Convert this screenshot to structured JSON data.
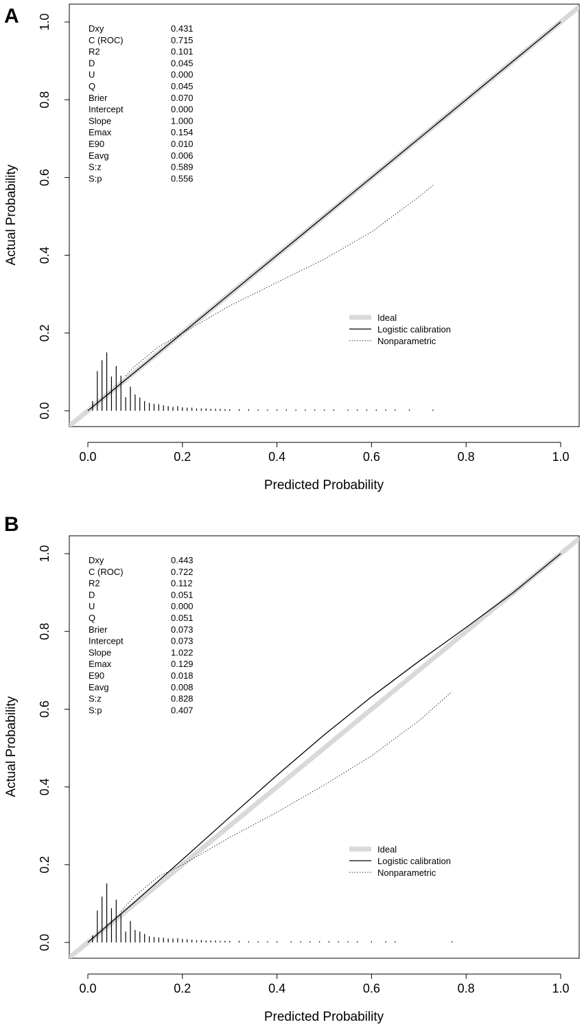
{
  "chart_data": [
    {
      "type": "line",
      "panel_label": "A",
      "xlabel": "Predicted Probability",
      "ylabel": "Actual Probability",
      "xlim": [
        -0.035,
        1.04
      ],
      "ylim": [
        -0.04,
        1.05
      ],
      "x_ticks": [
        "0.0",
        "0.2",
        "0.4",
        "0.6",
        "0.8",
        "1.0"
      ],
      "y_ticks": [
        "0.0",
        "0.2",
        "0.4",
        "0.6",
        "0.8",
        "1.0"
      ],
      "stats": [
        {
          "name": "Dxy",
          "value": "0.431"
        },
        {
          "name": "C (ROC)",
          "value": "0.715"
        },
        {
          "name": "R2",
          "value": "0.101"
        },
        {
          "name": "D",
          "value": "0.045"
        },
        {
          "name": "U",
          "value": "0.000"
        },
        {
          "name": "Q",
          "value": "0.045"
        },
        {
          "name": "Brier",
          "value": "0.070"
        },
        {
          "name": "Intercept",
          "value": "0.000"
        },
        {
          "name": "Slope",
          "value": "1.000"
        },
        {
          "name": "Emax",
          "value": "0.154"
        },
        {
          "name": "E90",
          "value": "0.010"
        },
        {
          "name": "Eavg",
          "value": "0.006"
        },
        {
          "name": "S:z",
          "value": "0.589"
        },
        {
          "name": "S:p",
          "value": "0.556"
        }
      ],
      "legend": {
        "position": "bottom-right",
        "entries": [
          "Ideal",
          "Logistic calibration",
          "Nonparametric"
        ]
      },
      "series": [
        {
          "name": "Ideal",
          "style": "thick-gray",
          "x": [
            -0.04,
            1.04
          ],
          "y": [
            -0.04,
            1.04
          ]
        },
        {
          "name": "Logistic calibration",
          "style": "solid",
          "x": [
            0.0,
            0.2,
            0.4,
            0.6,
            0.8,
            1.0
          ],
          "y": [
            0.0,
            0.2,
            0.4,
            0.6,
            0.8,
            1.0
          ]
        },
        {
          "name": "Nonparametric",
          "style": "dotted",
          "x": [
            0.08,
            0.1,
            0.15,
            0.2,
            0.25,
            0.3,
            0.4,
            0.5,
            0.6,
            0.7,
            0.73
          ],
          "y": [
            0.09,
            0.115,
            0.165,
            0.2,
            0.235,
            0.27,
            0.33,
            0.39,
            0.46,
            0.55,
            0.58
          ]
        }
      ],
      "histogram_spikes": {
        "x": [
          0.01,
          0.02,
          0.03,
          0.04,
          0.05,
          0.06,
          0.07,
          0.08,
          0.09,
          0.1,
          0.11,
          0.12,
          0.13,
          0.14,
          0.15,
          0.16,
          0.17,
          0.18,
          0.19,
          0.2,
          0.21,
          0.22,
          0.23,
          0.24,
          0.25,
          0.26,
          0.27,
          0.28,
          0.29,
          0.3,
          0.32,
          0.34,
          0.36,
          0.38,
          0.4,
          0.42,
          0.44,
          0.46,
          0.48,
          0.5,
          0.52,
          0.55,
          0.57,
          0.59,
          0.61,
          0.63,
          0.65,
          0.68,
          0.73
        ],
        "h": [
          0.025,
          0.102,
          0.13,
          0.15,
          0.088,
          0.115,
          0.09,
          0.035,
          0.062,
          0.042,
          0.034,
          0.025,
          0.02,
          0.018,
          0.017,
          0.014,
          0.012,
          0.01,
          0.012,
          0.009,
          0.008,
          0.008,
          0.006,
          0.006,
          0.006,
          0.005,
          0.005,
          0.005,
          0.004,
          0.004,
          0.004,
          0.004,
          0.003,
          0.003,
          0.003,
          0.003,
          0.003,
          0.003,
          0.003,
          0.003,
          0.003,
          0.003,
          0.003,
          0.003,
          0.003,
          0.003,
          0.003,
          0.003,
          0.003
        ]
      }
    },
    {
      "type": "line",
      "panel_label": "B",
      "xlabel": "Predicted Probability",
      "ylabel": "Actual Probability",
      "xlim": [
        -0.035,
        1.04
      ],
      "ylim": [
        -0.04,
        1.05
      ],
      "x_ticks": [
        "0.0",
        "0.2",
        "0.4",
        "0.6",
        "0.8",
        "1.0"
      ],
      "y_ticks": [
        "0.0",
        "0.2",
        "0.4",
        "0.6",
        "0.8",
        "1.0"
      ],
      "stats": [
        {
          "name": "Dxy",
          "value": "0.443"
        },
        {
          "name": "C (ROC)",
          "value": "0.722"
        },
        {
          "name": "R2",
          "value": "0.112"
        },
        {
          "name": "D",
          "value": "0.051"
        },
        {
          "name": "U",
          "value": "0.000"
        },
        {
          "name": "Q",
          "value": "0.051"
        },
        {
          "name": "Brier",
          "value": "0.073"
        },
        {
          "name": "Intercept",
          "value": "0.073"
        },
        {
          "name": "Slope",
          "value": "1.022"
        },
        {
          "name": "Emax",
          "value": "0.129"
        },
        {
          "name": "E90",
          "value": "0.018"
        },
        {
          "name": "Eavg",
          "value": "0.008"
        },
        {
          "name": "S:z",
          "value": "0.828"
        },
        {
          "name": "S:p",
          "value": "0.407"
        }
      ],
      "legend": {
        "position": "bottom-right",
        "entries": [
          "Ideal",
          "Logistic calibration",
          "Nonparametric"
        ]
      },
      "series": [
        {
          "name": "Ideal",
          "style": "thick-gray",
          "x": [
            -0.04,
            1.04
          ],
          "y": [
            -0.04,
            1.04
          ]
        },
        {
          "name": "Logistic calibration",
          "style": "solid",
          "x": [
            0.0,
            0.1,
            0.2,
            0.3,
            0.4,
            0.5,
            0.6,
            0.7,
            0.8,
            0.9,
            1.0
          ],
          "y": [
            0.0,
            0.105,
            0.213,
            0.322,
            0.43,
            0.534,
            0.632,
            0.723,
            0.81,
            0.9,
            1.0
          ]
        },
        {
          "name": "Nonparametric",
          "style": "dotted",
          "x": [
            0.07,
            0.1,
            0.15,
            0.2,
            0.25,
            0.3,
            0.4,
            0.5,
            0.6,
            0.7,
            0.77
          ],
          "y": [
            0.08,
            0.12,
            0.17,
            0.2,
            0.235,
            0.27,
            0.335,
            0.405,
            0.48,
            0.57,
            0.645
          ]
        }
      ],
      "histogram_spikes": {
        "x": [
          0.01,
          0.02,
          0.03,
          0.04,
          0.05,
          0.06,
          0.07,
          0.08,
          0.09,
          0.1,
          0.11,
          0.12,
          0.13,
          0.14,
          0.15,
          0.16,
          0.17,
          0.18,
          0.19,
          0.2,
          0.21,
          0.22,
          0.23,
          0.24,
          0.25,
          0.26,
          0.27,
          0.28,
          0.29,
          0.3,
          0.32,
          0.34,
          0.36,
          0.38,
          0.4,
          0.43,
          0.45,
          0.47,
          0.49,
          0.51,
          0.53,
          0.55,
          0.57,
          0.6,
          0.63,
          0.65,
          0.77
        ],
        "h": [
          0.018,
          0.082,
          0.118,
          0.152,
          0.088,
          0.11,
          0.072,
          0.028,
          0.055,
          0.032,
          0.028,
          0.022,
          0.016,
          0.014,
          0.013,
          0.012,
          0.01,
          0.01,
          0.011,
          0.009,
          0.008,
          0.007,
          0.006,
          0.006,
          0.005,
          0.005,
          0.005,
          0.004,
          0.004,
          0.004,
          0.004,
          0.003,
          0.003,
          0.003,
          0.003,
          0.003,
          0.003,
          0.003,
          0.003,
          0.003,
          0.003,
          0.003,
          0.003,
          0.003,
          0.003,
          0.003,
          0.003
        ]
      }
    }
  ]
}
